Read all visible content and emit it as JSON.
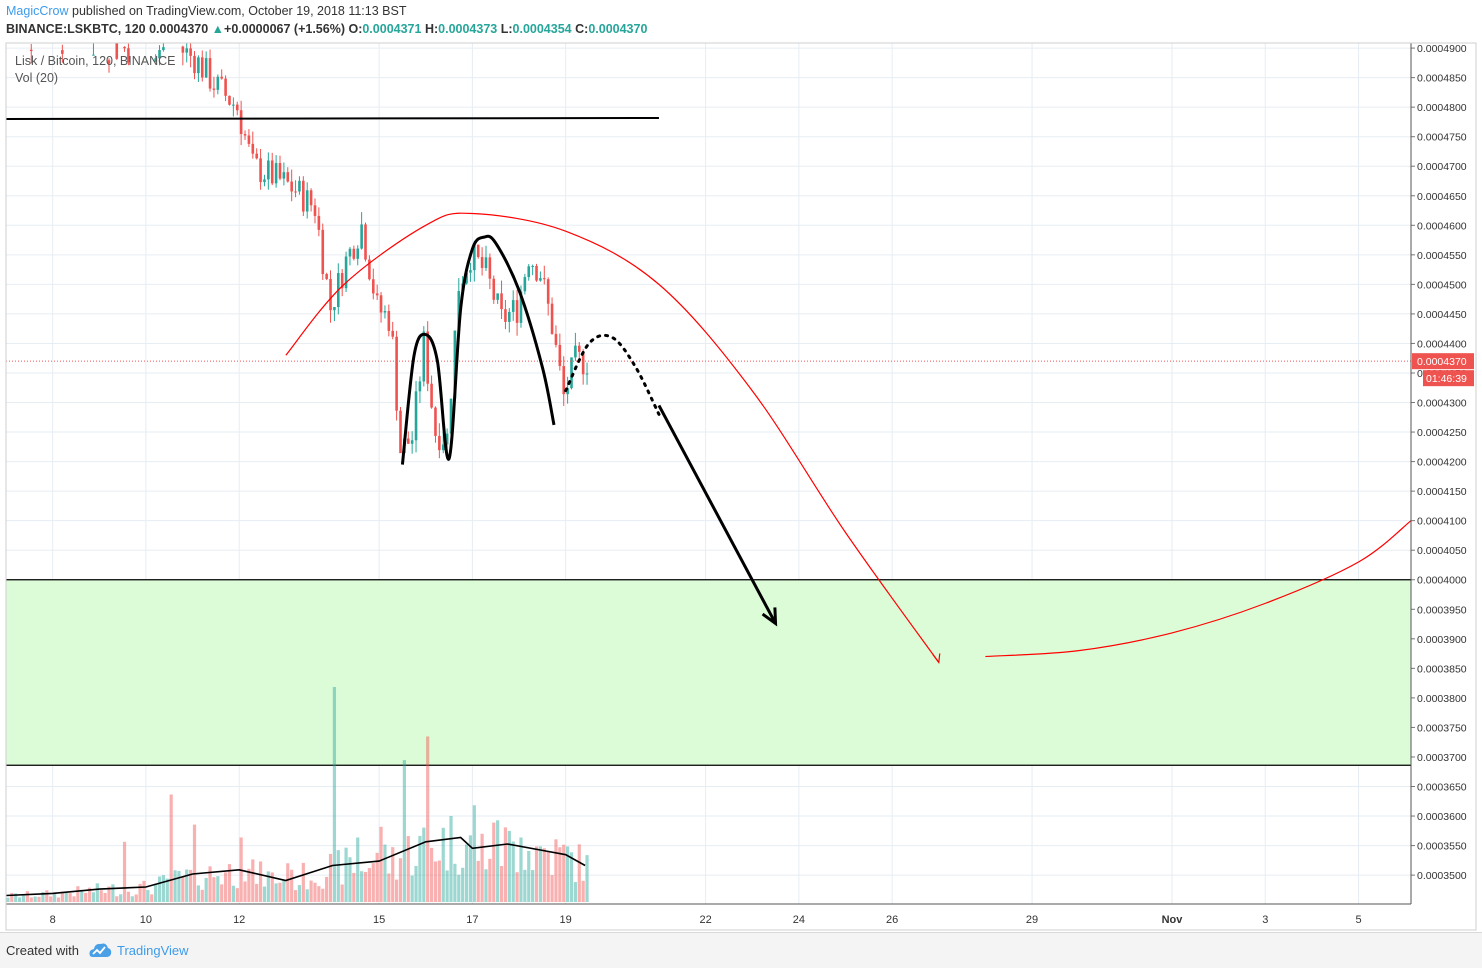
{
  "header": {
    "author": "MagicCrow",
    "published": " published on TradingView.com, October 19, 2018 11:13 BST",
    "symbol": "BINANCE:LSKBTC, 120",
    "last": "0.0004370",
    "change": "+0.0000067 (+1.56%)",
    "o_label": "O:",
    "o_value": "0.0004371",
    "h_label": "H:",
    "h_value": "0.0004373",
    "l_label": "L:",
    "l_value": "0.0004354",
    "c_label": "C:",
    "c_value": "0.0004370"
  },
  "legend": {
    "series": "Lisk / Bitcoin, 120, BINANCE",
    "volume": "Vol (20)"
  },
  "footer": {
    "created_with": "Created with",
    "brand": "TradingView"
  },
  "colors": {
    "up": "#26a69a",
    "down": "#ef5350",
    "zone_fill": "#dcfcd8",
    "red_line": "#ff0000",
    "grid": "#e6edf3",
    "axis_text": "#333333",
    "price_tag": "#ef5350"
  },
  "icons": {
    "change_arrow": "triangle-up-icon",
    "logo": "tradingview-cloud-icon"
  },
  "chart_data": {
    "type": "candlestick",
    "symbol": "BINANCE:LSKBTC",
    "timeframe": "120",
    "last_price": 0.000437,
    "countdown": "01:46:39",
    "ylim": [
      0.00034511,
      0.00049086
    ],
    "x_domain": [
      "2018-10-07T00:00",
      "2018-11-06T03:00"
    ],
    "y_ticks": [
      "0.0004900",
      "0.0004850",
      "0.0004800",
      "0.0004750",
      "0.0004700",
      "0.0004650",
      "0.0004600",
      "0.0004550",
      "0.0004500",
      "0.0004450",
      "0.0004400",
      "0.0004350",
      "0.0004300",
      "0.0004250",
      "0.0004200",
      "0.0004150",
      "0.0004100",
      "0.0004050",
      "0.0004000",
      "0.0003950",
      "0.0003900",
      "0.0003850",
      "0.0003800",
      "0.0003750",
      "0.0003700",
      "0.0003650",
      "0.0003600",
      "0.0003550",
      "0.0003500"
    ],
    "x_ticks": [
      {
        "label": "8",
        "t": "2018-10-08T00:00"
      },
      {
        "label": "10",
        "t": "2018-10-10T00:00"
      },
      {
        "label": "12",
        "t": "2018-10-12T00:00"
      },
      {
        "label": "15",
        "t": "2018-10-15T00:00"
      },
      {
        "label": "17",
        "t": "2018-10-17T00:00"
      },
      {
        "label": "19",
        "t": "2018-10-19T00:00"
      },
      {
        "label": "22",
        "t": "2018-10-22T00:00"
      },
      {
        "label": "24",
        "t": "2018-10-24T00:00"
      },
      {
        "label": "26",
        "t": "2018-10-26T00:00"
      },
      {
        "label": "29",
        "t": "2018-10-29T00:00"
      },
      {
        "label": "Nov",
        "t": "2018-11-01T00:00"
      },
      {
        "label": "3",
        "t": "2018-11-03T00:00"
      },
      {
        "label": "5",
        "t": "2018-11-05T00:00"
      }
    ],
    "price_path": [
      [
        "2018-10-07T00:00",
        0.000491
      ],
      [
        "2018-10-08T00:00",
        0.000492
      ],
      [
        "2018-10-09T00:00",
        0.00049
      ],
      [
        "2018-10-10T00:00",
        0.00049
      ],
      [
        "2018-10-10T18:00",
        0.00049
      ],
      [
        "2018-10-11T03:00",
        0.000488
      ],
      [
        "2018-10-11T12:00",
        0.000484
      ],
      [
        "2018-10-12T00:00",
        0.00048
      ],
      [
        "2018-10-12T08:00",
        0.00047
      ],
      [
        "2018-10-12T20:00",
        0.000468
      ],
      [
        "2018-10-13T06:00",
        0.000466
      ],
      [
        "2018-10-13T16:00",
        0.000463
      ],
      [
        "2018-10-14T00:00",
        0.000446
      ],
      [
        "2018-10-14T08:00",
        0.000454
      ],
      [
        "2018-10-14T16:00",
        0.00046
      ],
      [
        "2018-10-15T00:00",
        0.000446
      ],
      [
        "2018-10-15T07:00",
        0.000444
      ],
      [
        "2018-10-15T12:00",
        0.000422
      ],
      [
        "2018-10-15T18:00",
        0.000424
      ],
      [
        "2018-10-16T00:00",
        0.00044
      ],
      [
        "2018-10-16T06:00",
        0.000425
      ],
      [
        "2018-10-16T12:00",
        0.000424
      ],
      [
        "2018-10-16T18:00",
        0.00045
      ],
      [
        "2018-10-17T00:00",
        0.000455
      ],
      [
        "2018-10-17T08:00",
        0.000452
      ],
      [
        "2018-10-17T16:00",
        0.000444
      ],
      [
        "2018-10-18T00:00",
        0.000446
      ],
      [
        "2018-10-18T06:00",
        0.000455
      ],
      [
        "2018-10-18T12:00",
        0.000452
      ],
      [
        "2018-10-18T18:00",
        0.000443
      ],
      [
        "2018-10-19T00:00",
        0.000431
      ],
      [
        "2018-10-19T06:00",
        0.000437
      ],
      [
        "2018-10-19T10:00",
        0.000437
      ]
    ],
    "volume_ma_path": [
      [
        "2018-10-07T00:00",
        0.03
      ],
      [
        "2018-10-08T00:00",
        0.04
      ],
      [
        "2018-10-09T00:00",
        0.06
      ],
      [
        "2018-10-10T00:00",
        0.07
      ],
      [
        "2018-10-11T00:00",
        0.13
      ],
      [
        "2018-10-12T00:00",
        0.15
      ],
      [
        "2018-10-13T00:00",
        0.1
      ],
      [
        "2018-10-14T00:00",
        0.17
      ],
      [
        "2018-10-15T00:00",
        0.19
      ],
      [
        "2018-10-16T00:00",
        0.28
      ],
      [
        "2018-10-16T18:00",
        0.3
      ],
      [
        "2018-10-17T00:00",
        0.25
      ],
      [
        "2018-10-17T18:00",
        0.27
      ],
      [
        "2018-10-18T12:00",
        0.24
      ],
      [
        "2018-10-19T00:00",
        0.22
      ],
      [
        "2018-10-19T10:00",
        0.17
      ]
    ],
    "volume_spikes": [
      [
        "2018-10-09T12:00",
        0.28
      ],
      [
        "2018-10-10T12:00",
        0.5
      ],
      [
        "2018-10-11T00:00",
        0.36
      ],
      [
        "2018-10-12T00:00",
        0.3
      ],
      [
        "2018-10-13T00:00",
        0.18
      ],
      [
        "2018-10-14T00:00",
        1.0
      ],
      [
        "2018-10-14T12:00",
        0.3
      ],
      [
        "2018-10-15T00:00",
        0.35
      ],
      [
        "2018-10-15T12:00",
        0.66
      ],
      [
        "2018-10-16T00:00",
        0.77
      ],
      [
        "2018-10-16T12:00",
        0.4
      ],
      [
        "2018-10-17T00:00",
        0.45
      ],
      [
        "2018-10-17T12:00",
        0.38
      ],
      [
        "2018-10-18T00:00",
        0.3
      ],
      [
        "2018-10-18T12:00",
        0.25
      ],
      [
        "2018-10-19T00:00",
        0.22
      ]
    ],
    "horizontal_lines": [
      {
        "price": 0.000478,
        "from": "2018-10-07T00:00",
        "to": "2018-10-21T00:00"
      }
    ],
    "zone": {
      "from_price": 0.0004,
      "to_price": 0.0003686
    },
    "drawings": {
      "black_m_pattern": [
        [
          "2018-10-15T12:00",
          0.0004195
        ],
        [
          "2018-10-15T18:00",
          0.000438
        ],
        [
          "2018-10-16T00:00",
          0.0004415
        ],
        [
          "2018-10-16T06:00",
          0.000437
        ],
        [
          "2018-10-16T12:00",
          0.0004205
        ],
        [
          "2018-10-16T18:00",
          0.000446
        ],
        [
          "2018-10-17T00:00",
          0.000456
        ],
        [
          "2018-10-17T06:00",
          0.000458
        ],
        [
          "2018-10-17T12:00",
          0.000457
        ],
        [
          "2018-10-18T00:00",
          0.000449
        ],
        [
          "2018-10-18T12:00",
          0.000436
        ],
        [
          "2018-10-18T18:00",
          0.0004262
        ]
      ],
      "dotted_projection": [
        [
          "2018-10-19T00:00",
          0.000432
        ],
        [
          "2018-10-19T12:00",
          0.00044
        ],
        [
          "2018-10-20T00:00",
          0.000441
        ],
        [
          "2018-10-20T12:00",
          0.000436
        ],
        [
          "2018-10-21T00:00",
          0.000428
        ]
      ],
      "black_arrow": {
        "from": [
          "2018-10-21T00:00",
          0.0004295
        ],
        "to": [
          "2018-10-23T12:00",
          0.0003926
        ]
      },
      "red_arc": [
        [
          "2018-10-13T00:00",
          0.000438
        ],
        [
          "2018-10-14T06:00",
          0.00045
        ],
        [
          "2018-10-16T00:00",
          0.00046
        ],
        [
          "2018-10-17T00:00",
          0.000462
        ],
        [
          "2018-10-19T00:00",
          0.000459
        ],
        [
          "2018-10-21T00:00",
          0.00045
        ],
        [
          "2018-10-23T00:00",
          0.000432
        ],
        [
          "2018-10-25T00:00",
          0.000408
        ],
        [
          "2018-10-27T00:00",
          0.000386
        ]
      ],
      "red_curve": [
        [
          "2018-10-28T00:00",
          0.000387
        ],
        [
          "2018-10-30T00:00",
          0.000388
        ],
        [
          "2018-11-01T00:00",
          0.000391
        ],
        [
          "2018-11-03T00:00",
          0.000396
        ],
        [
          "2018-11-05T00:00",
          0.000403
        ],
        [
          "2018-11-06T03:00",
          0.00041
        ]
      ]
    }
  }
}
